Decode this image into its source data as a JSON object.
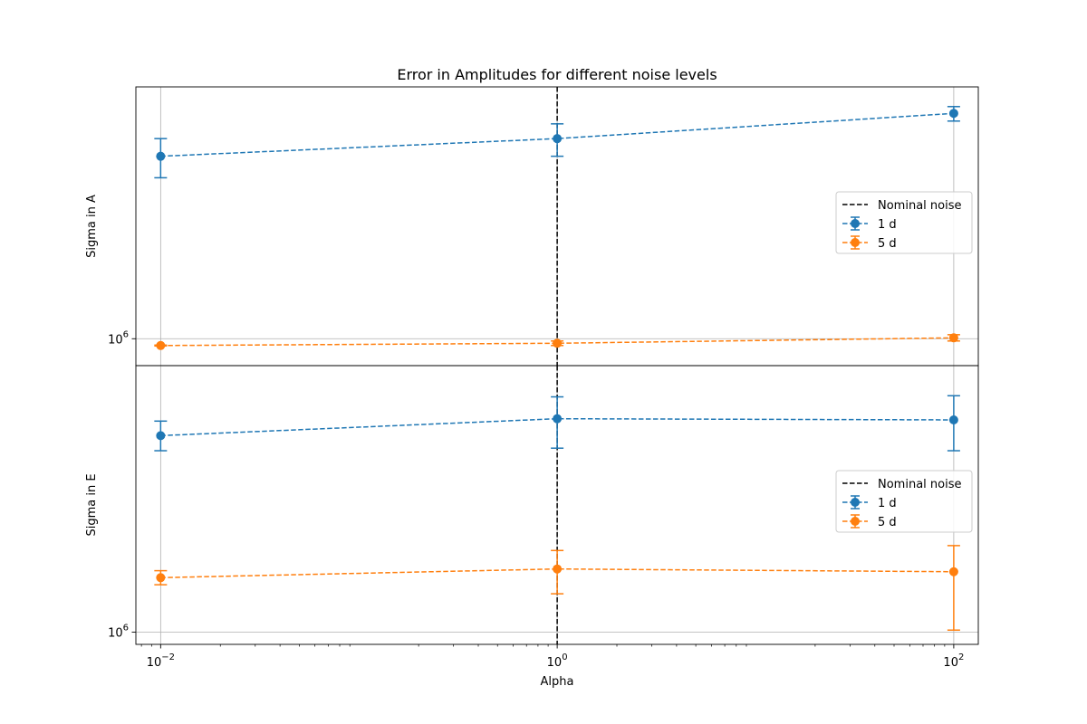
{
  "chart_data": {
    "type": "line",
    "title": "Error in Amplitudes for different noise levels",
    "xlabel": "Alpha",
    "x_scale": "log",
    "x": [
      0.01,
      1,
      100
    ],
    "x_ticks": [
      {
        "value": 0.01,
        "label": "10^-2"
      },
      {
        "value": 1,
        "label": "10^0"
      },
      {
        "value": 100,
        "label": "10^2"
      }
    ],
    "grid": true,
    "vline": {
      "x": 1,
      "label": "Nominal noise",
      "style": "dashed",
      "color": "#000000"
    },
    "legend_position": "center-right",
    "panels": [
      {
        "ylabel": "Sigma in A",
        "y_scale": "log",
        "ylim": [
          942000,
          1750000
        ],
        "y_ticks": [
          {
            "value": 1000000,
            "label": "10^6"
          }
        ],
        "series": [
          {
            "name": "1 d",
            "color": "#1f77b4",
            "y": [
              1500000,
              1560000,
              1650000
            ],
            "err_low": [
              1430000,
              1500000,
              1622000
            ],
            "err_high": [
              1560000,
              1612000,
              1675000
            ]
          },
          {
            "name": "5 d",
            "color": "#ff7f0e",
            "y": [
              985000,
              990000,
              1002000
            ],
            "err_low": [
              984000,
              985000,
              995000
            ],
            "err_high": [
              986000,
              995000,
              1009000
            ]
          }
        ]
      },
      {
        "ylabel": "Sigma in E",
        "y_scale": "log",
        "ylim": [
          970000,
          1940000
        ],
        "y_ticks": [
          {
            "value": 1000000,
            "label": "10^6"
          }
        ],
        "series": [
          {
            "name": "1 d",
            "color": "#1f77b4",
            "y": [
              1630000,
              1700000,
              1695000
            ],
            "err_low": [
              1570000,
              1580000,
              1570000
            ],
            "err_high": [
              1690000,
              1795000,
              1800000
            ]
          },
          {
            "name": "5 d",
            "color": "#ff7f0e",
            "y": [
              1145000,
              1170000,
              1162000
            ],
            "err_low": [
              1125000,
              1100000,
              1005000
            ],
            "err_high": [
              1165000,
              1225000,
              1240000
            ]
          }
        ]
      }
    ]
  }
}
